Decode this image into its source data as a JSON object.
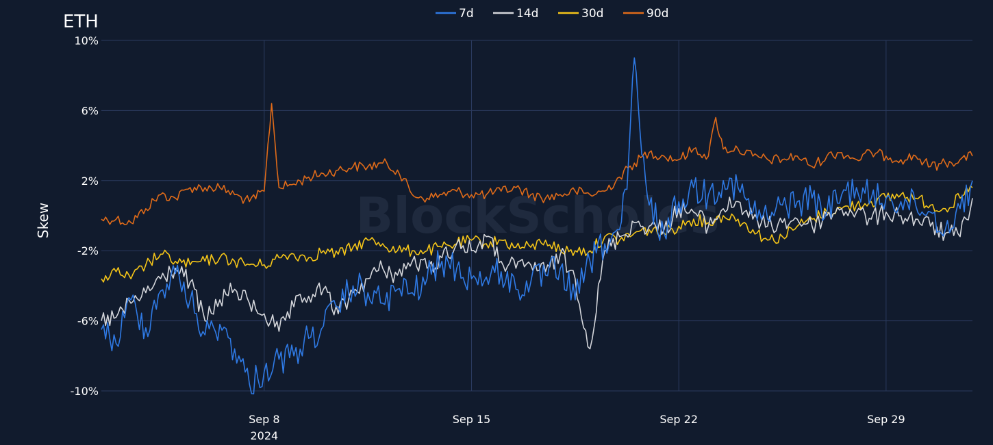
{
  "chart_data": {
    "type": "line",
    "title": "ETH",
    "ylabel": "Skew",
    "xlabel": "",
    "watermark": "BlockScholes",
    "x_range": [
      "2024-09-02T12:00",
      "2024-10-01T22:00"
    ],
    "ylim": [
      -10,
      10
    ],
    "y_ticks": [
      10,
      6,
      2,
      -2,
      -6,
      -10
    ],
    "y_tick_labels": [
      "10%",
      "6%",
      "2%",
      "-2%",
      "-6%",
      "-10%"
    ],
    "x_ticks": [
      "2024-09-08",
      "2024-09-15",
      "2024-09-22",
      "2024-09-29"
    ],
    "x_tick_labels": [
      "Sep 8",
      "Sep 15",
      "Sep 22",
      "Sep 29"
    ],
    "x_year_label": "2024",
    "grid": true,
    "legend_position": "top-center",
    "series": [
      {
        "name": "7d",
        "color": "#2f7ae5",
        "points": [
          [
            "2024-09-02T12:00",
            -6.5
          ],
          [
            "2024-09-03T00:00",
            -7.3
          ],
          [
            "2024-09-03T12:00",
            -4.8
          ],
          [
            "2024-09-04T00:00",
            -6.4
          ],
          [
            "2024-09-04T12:00",
            -4.3
          ],
          [
            "2024-09-05T00:00",
            -3.3
          ],
          [
            "2024-09-05T12:00",
            -4.8
          ],
          [
            "2024-09-06T00:00",
            -6.8
          ],
          [
            "2024-09-06T12:00",
            -6.2
          ],
          [
            "2024-09-07T00:00",
            -7.6
          ],
          [
            "2024-09-07T12:00",
            -9.6
          ],
          [
            "2024-09-08T00:00",
            -8.9
          ],
          [
            "2024-09-08T12:00",
            -8.2
          ],
          [
            "2024-09-09T00:00",
            -8.0
          ],
          [
            "2024-09-09T12:00",
            -7.0
          ],
          [
            "2024-09-10T00:00",
            -6.3
          ],
          [
            "2024-09-10T12:00",
            -5.2
          ],
          [
            "2024-09-11T00:00",
            -4.0
          ],
          [
            "2024-09-11T12:00",
            -4.4
          ],
          [
            "2024-09-12T00:00",
            -5.0
          ],
          [
            "2024-09-12T12:00",
            -4.2
          ],
          [
            "2024-09-13T00:00",
            -4.4
          ],
          [
            "2024-09-13T12:00",
            -3.6
          ],
          [
            "2024-09-14T00:00",
            -2.6
          ],
          [
            "2024-09-14T12:00",
            -3.0
          ],
          [
            "2024-09-15T00:00",
            -3.6
          ],
          [
            "2024-09-15T12:00",
            -3.5
          ],
          [
            "2024-09-16T00:00",
            -3.2
          ],
          [
            "2024-09-16T12:00",
            -4.2
          ],
          [
            "2024-09-17T00:00",
            -3.8
          ],
          [
            "2024-09-17T12:00",
            -3.4
          ],
          [
            "2024-09-18T00:00",
            -3.0
          ],
          [
            "2024-09-18T12:00",
            -4.8
          ],
          [
            "2024-09-19T00:00",
            -2.6
          ],
          [
            "2024-09-19T12:00",
            -1.6
          ],
          [
            "2024-09-20T00:00",
            -0.8
          ],
          [
            "2024-09-20T06:00",
            1.5
          ],
          [
            "2024-09-20T12:00",
            9.0
          ],
          [
            "2024-09-20T18:00",
            3.5
          ],
          [
            "2024-09-21T00:00",
            0.6
          ],
          [
            "2024-09-21T12:00",
            -1.0
          ],
          [
            "2024-09-22T00:00",
            0.8
          ],
          [
            "2024-09-22T12:00",
            1.6
          ],
          [
            "2024-09-23T00:00",
            1.2
          ],
          [
            "2024-09-23T12:00",
            2.0
          ],
          [
            "2024-09-24T00:00",
            1.6
          ],
          [
            "2024-09-24T12:00",
            0.2
          ],
          [
            "2024-09-25T00:00",
            -0.2
          ],
          [
            "2024-09-25T12:00",
            0.6
          ],
          [
            "2024-09-26T00:00",
            0.8
          ],
          [
            "2024-09-26T12:00",
            1.0
          ],
          [
            "2024-09-27T00:00",
            0.2
          ],
          [
            "2024-09-27T12:00",
            1.2
          ],
          [
            "2024-09-28T00:00",
            1.6
          ],
          [
            "2024-09-28T12:00",
            1.0
          ],
          [
            "2024-09-29T00:00",
            1.0
          ],
          [
            "2024-09-29T12:00",
            0.8
          ],
          [
            "2024-09-30T00:00",
            0.6
          ],
          [
            "2024-09-30T12:00",
            0.2
          ],
          [
            "2024-10-01T00:00",
            -0.8
          ],
          [
            "2024-10-01T12:00",
            0.4
          ],
          [
            "2024-10-01T22:00",
            2.0
          ]
        ]
      },
      {
        "name": "14d",
        "color": "#d4d6db",
        "points": [
          [
            "2024-09-02T12:00",
            -6.0
          ],
          [
            "2024-09-03T00:00",
            -5.8
          ],
          [
            "2024-09-03T12:00",
            -5.0
          ],
          [
            "2024-09-04T00:00",
            -4.4
          ],
          [
            "2024-09-04T12:00",
            -3.6
          ],
          [
            "2024-09-05T00:00",
            -3.0
          ],
          [
            "2024-09-05T12:00",
            -3.8
          ],
          [
            "2024-09-06T00:00",
            -6.0
          ],
          [
            "2024-09-06T12:00",
            -4.8
          ],
          [
            "2024-09-07T00:00",
            -4.2
          ],
          [
            "2024-09-07T12:00",
            -5.0
          ],
          [
            "2024-09-08T00:00",
            -5.6
          ],
          [
            "2024-09-08T12:00",
            -6.6
          ],
          [
            "2024-09-09T00:00",
            -5.2
          ],
          [
            "2024-09-09T12:00",
            -4.6
          ],
          [
            "2024-09-10T00:00",
            -4.2
          ],
          [
            "2024-09-10T12:00",
            -5.6
          ],
          [
            "2024-09-11T00:00",
            -4.4
          ],
          [
            "2024-09-11T12:00",
            -3.6
          ],
          [
            "2024-09-12T00:00",
            -3.0
          ],
          [
            "2024-09-12T12:00",
            -3.4
          ],
          [
            "2024-09-13T00:00",
            -2.6
          ],
          [
            "2024-09-13T12:00",
            -3.0
          ],
          [
            "2024-09-14T00:00",
            -2.4
          ],
          [
            "2024-09-14T12:00",
            -1.6
          ],
          [
            "2024-09-15T00:00",
            -2.0
          ],
          [
            "2024-09-15T12:00",
            -1.2
          ],
          [
            "2024-09-16T00:00",
            -2.6
          ],
          [
            "2024-09-16T12:00",
            -3.0
          ],
          [
            "2024-09-17T00:00",
            -2.8
          ],
          [
            "2024-09-17T12:00",
            -3.2
          ],
          [
            "2024-09-18T00:00",
            -2.2
          ],
          [
            "2024-09-18T12:00",
            -3.6
          ],
          [
            "2024-09-19T00:00",
            -7.6
          ],
          [
            "2024-09-19T12:00",
            -2.0
          ],
          [
            "2024-09-20T00:00",
            -1.2
          ],
          [
            "2024-09-20T12:00",
            -0.4
          ],
          [
            "2024-09-21T00:00",
            -0.6
          ],
          [
            "2024-09-21T12:00",
            -0.8
          ],
          [
            "2024-09-22T00:00",
            0.4
          ],
          [
            "2024-09-22T12:00",
            0.2
          ],
          [
            "2024-09-23T00:00",
            -0.6
          ],
          [
            "2024-09-23T12:00",
            0.4
          ],
          [
            "2024-09-24T00:00",
            0.8
          ],
          [
            "2024-09-24T12:00",
            -0.2
          ],
          [
            "2024-09-25T00:00",
            -0.6
          ],
          [
            "2024-09-25T12:00",
            -0.4
          ],
          [
            "2024-09-26T00:00",
            -0.2
          ],
          [
            "2024-09-26T12:00",
            -0.6
          ],
          [
            "2024-09-27T00:00",
            0.0
          ],
          [
            "2024-09-27T12:00",
            0.4
          ],
          [
            "2024-09-28T00:00",
            0.2
          ],
          [
            "2024-09-28T12:00",
            -0.2
          ],
          [
            "2024-09-29T00:00",
            0.2
          ],
          [
            "2024-09-29T12:00",
            0.0
          ],
          [
            "2024-09-30T00:00",
            -0.2
          ],
          [
            "2024-09-30T12:00",
            -0.6
          ],
          [
            "2024-10-01T00:00",
            -1.0
          ],
          [
            "2024-10-01T12:00",
            -1.2
          ],
          [
            "2024-10-01T22:00",
            1.0
          ]
        ]
      },
      {
        "name": "30d",
        "color": "#f5c518",
        "points": [
          [
            "2024-09-02T12:00",
            -3.6
          ],
          [
            "2024-09-03T00:00",
            -3.2
          ],
          [
            "2024-09-03T12:00",
            -3.6
          ],
          [
            "2024-09-04T00:00",
            -2.8
          ],
          [
            "2024-09-04T12:00",
            -2.2
          ],
          [
            "2024-09-05T00:00",
            -2.6
          ],
          [
            "2024-09-05T12:00",
            -2.8
          ],
          [
            "2024-09-06T00:00",
            -2.6
          ],
          [
            "2024-09-06T12:00",
            -2.4
          ],
          [
            "2024-09-07T00:00",
            -2.6
          ],
          [
            "2024-09-07T12:00",
            -2.8
          ],
          [
            "2024-09-08T00:00",
            -2.8
          ],
          [
            "2024-09-08T12:00",
            -2.4
          ],
          [
            "2024-09-09T00:00",
            -2.2
          ],
          [
            "2024-09-09T12:00",
            -2.4
          ],
          [
            "2024-09-10T00:00",
            -2.0
          ],
          [
            "2024-09-10T12:00",
            -2.2
          ],
          [
            "2024-09-11T00:00",
            -1.8
          ],
          [
            "2024-09-11T12:00",
            -1.4
          ],
          [
            "2024-09-12T00:00",
            -1.6
          ],
          [
            "2024-09-12T12:00",
            -2.0
          ],
          [
            "2024-09-13T00:00",
            -2.0
          ],
          [
            "2024-09-13T12:00",
            -2.0
          ],
          [
            "2024-09-14T00:00",
            -1.8
          ],
          [
            "2024-09-14T12:00",
            -1.6
          ],
          [
            "2024-09-15T00:00",
            -1.4
          ],
          [
            "2024-09-15T12:00",
            -1.6
          ],
          [
            "2024-09-16T00:00",
            -1.4
          ],
          [
            "2024-09-16T12:00",
            -1.8
          ],
          [
            "2024-09-17T00:00",
            -1.8
          ],
          [
            "2024-09-17T12:00",
            -1.4
          ],
          [
            "2024-09-18T00:00",
            -2.0
          ],
          [
            "2024-09-18T12:00",
            -2.0
          ],
          [
            "2024-09-19T00:00",
            -2.0
          ],
          [
            "2024-09-19T12:00",
            -1.2
          ],
          [
            "2024-09-20T00:00",
            -1.4
          ],
          [
            "2024-09-20T12:00",
            -1.0
          ],
          [
            "2024-09-21T00:00",
            -0.8
          ],
          [
            "2024-09-21T12:00",
            -1.0
          ],
          [
            "2024-09-22T00:00",
            -0.6
          ],
          [
            "2024-09-22T12:00",
            -0.2
          ],
          [
            "2024-09-23T00:00",
            -0.4
          ],
          [
            "2024-09-23T12:00",
            0.0
          ],
          [
            "2024-09-24T00:00",
            -0.2
          ],
          [
            "2024-09-24T12:00",
            -0.8
          ],
          [
            "2024-09-25T00:00",
            -1.4
          ],
          [
            "2024-09-25T12:00",
            -1.2
          ],
          [
            "2024-09-26T00:00",
            -0.6
          ],
          [
            "2024-09-26T12:00",
            -0.2
          ],
          [
            "2024-09-27T00:00",
            0.2
          ],
          [
            "2024-09-27T12:00",
            0.4
          ],
          [
            "2024-09-28T00:00",
            0.6
          ],
          [
            "2024-09-28T12:00",
            0.8
          ],
          [
            "2024-09-29T00:00",
            1.0
          ],
          [
            "2024-09-29T12:00",
            1.2
          ],
          [
            "2024-09-30T00:00",
            1.0
          ],
          [
            "2024-09-30T12:00",
            0.6
          ],
          [
            "2024-10-01T00:00",
            0.4
          ],
          [
            "2024-10-01T12:00",
            1.0
          ],
          [
            "2024-10-01T22:00",
            1.6
          ]
        ]
      },
      {
        "name": "90d",
        "color": "#e06b19",
        "points": [
          [
            "2024-09-02T12:00",
            -0.2
          ],
          [
            "2024-09-03T00:00",
            -0.2
          ],
          [
            "2024-09-03T12:00",
            -0.4
          ],
          [
            "2024-09-04T00:00",
            0.4
          ],
          [
            "2024-09-04T12:00",
            1.2
          ],
          [
            "2024-09-05T00:00",
            1.0
          ],
          [
            "2024-09-05T12:00",
            1.6
          ],
          [
            "2024-09-06T00:00",
            1.6
          ],
          [
            "2024-09-06T12:00",
            1.6
          ],
          [
            "2024-09-07T00:00",
            1.2
          ],
          [
            "2024-09-07T12:00",
            0.8
          ],
          [
            "2024-09-08T00:00",
            1.4
          ],
          [
            "2024-09-08T06:00",
            6.4
          ],
          [
            "2024-09-08T12:00",
            1.6
          ],
          [
            "2024-09-09T00:00",
            1.8
          ],
          [
            "2024-09-09T12:00",
            2.2
          ],
          [
            "2024-09-10T00:00",
            2.4
          ],
          [
            "2024-09-10T12:00",
            2.6
          ],
          [
            "2024-09-11T00:00",
            2.8
          ],
          [
            "2024-09-11T12:00",
            2.8
          ],
          [
            "2024-09-12T00:00",
            3.0
          ],
          [
            "2024-09-12T12:00",
            2.6
          ],
          [
            "2024-09-13T00:00",
            1.2
          ],
          [
            "2024-09-13T12:00",
            1.0
          ],
          [
            "2024-09-14T00:00",
            1.2
          ],
          [
            "2024-09-14T12:00",
            1.4
          ],
          [
            "2024-09-15T00:00",
            1.2
          ],
          [
            "2024-09-15T12:00",
            1.2
          ],
          [
            "2024-09-16T00:00",
            1.4
          ],
          [
            "2024-09-16T12:00",
            1.6
          ],
          [
            "2024-09-17T00:00",
            1.2
          ],
          [
            "2024-09-17T12:00",
            1.0
          ],
          [
            "2024-09-18T00:00",
            1.2
          ],
          [
            "2024-09-18T12:00",
            1.4
          ],
          [
            "2024-09-19T00:00",
            1.2
          ],
          [
            "2024-09-19T12:00",
            1.4
          ],
          [
            "2024-09-20T00:00",
            2.2
          ],
          [
            "2024-09-20T12:00",
            3.0
          ],
          [
            "2024-09-21T00:00",
            3.6
          ],
          [
            "2024-09-21T12:00",
            3.4
          ],
          [
            "2024-09-22T00:00",
            3.2
          ],
          [
            "2024-09-22T12:00",
            3.8
          ],
          [
            "2024-09-23T00:00",
            3.4
          ],
          [
            "2024-09-23T06:00",
            5.6
          ],
          [
            "2024-09-23T12:00",
            3.8
          ],
          [
            "2024-09-24T00:00",
            3.8
          ],
          [
            "2024-09-24T12:00",
            3.4
          ],
          [
            "2024-09-25T00:00",
            3.2
          ],
          [
            "2024-09-25T12:00",
            3.2
          ],
          [
            "2024-09-26T00:00",
            3.4
          ],
          [
            "2024-09-26T12:00",
            2.8
          ],
          [
            "2024-09-27T00:00",
            3.4
          ],
          [
            "2024-09-27T12:00",
            3.6
          ],
          [
            "2024-09-28T00:00",
            3.2
          ],
          [
            "2024-09-28T12:00",
            3.6
          ],
          [
            "2024-09-29T00:00",
            3.4
          ],
          [
            "2024-09-29T12:00",
            3.2
          ],
          [
            "2024-09-30T00:00",
            3.4
          ],
          [
            "2024-09-30T12:00",
            2.8
          ],
          [
            "2024-10-01T00:00",
            3.0
          ],
          [
            "2024-10-01T12:00",
            3.2
          ],
          [
            "2024-10-01T22:00",
            3.4
          ]
        ]
      }
    ]
  }
}
